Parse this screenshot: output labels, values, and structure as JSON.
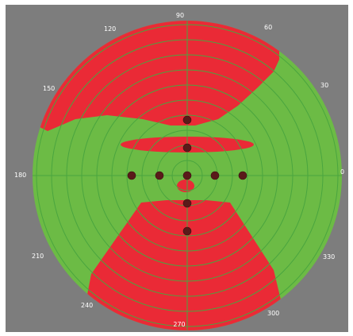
{
  "polar_plot": {
    "angle_labels": [
      "0",
      "30",
      "60",
      "90",
      "120",
      "150",
      "180",
      "210",
      "240",
      "270",
      "300",
      "330"
    ],
    "colors": {
      "background": "#7d7d7d",
      "safe_zone": "#6cbb45",
      "unsafe_zone": "#ea2a36",
      "grid_lines": "#4aa53f",
      "markers": "#5a1a1a"
    },
    "marker_count": 9
  }
}
